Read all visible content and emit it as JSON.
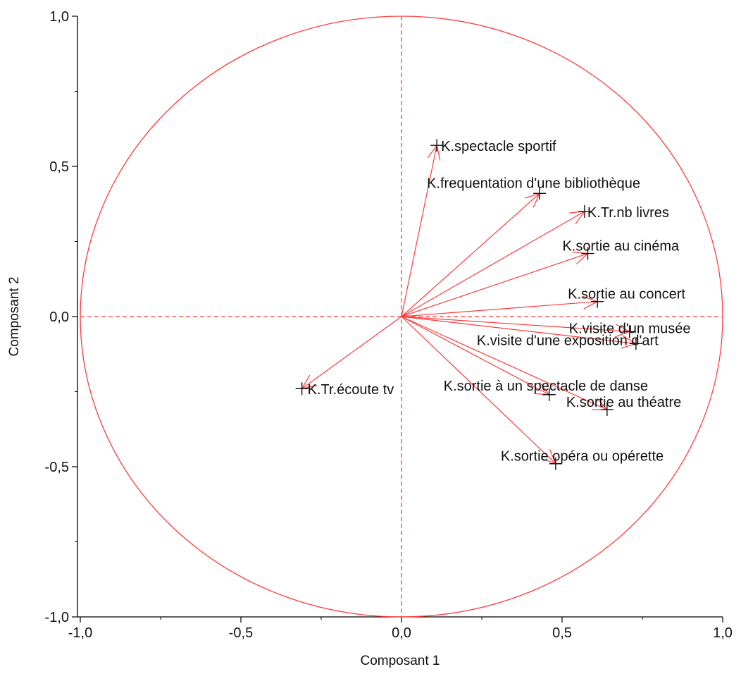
{
  "chart_data": {
    "type": "scatter",
    "subtype": "correlation-circle",
    "title": "",
    "xlabel": "Composant 1",
    "ylabel": "Composant 2",
    "xlim": [
      -1.0,
      1.0
    ],
    "ylim": [
      -1.0,
      1.0
    ],
    "x_ticks": [
      {
        "value": -1.0,
        "label": "-1,0"
      },
      {
        "value": -0.5,
        "label": "-0,5"
      },
      {
        "value": 0.0,
        "label": "0,0"
      },
      {
        "value": 0.5,
        "label": "0,5"
      },
      {
        "value": 1.0,
        "label": "1,0"
      }
    ],
    "y_ticks": [
      {
        "value": 1.0,
        "label": "1,0"
      },
      {
        "value": 0.5,
        "label": "0,5"
      },
      {
        "value": 0.0,
        "label": "0,0"
      },
      {
        "value": -0.5,
        "label": "-0,5"
      },
      {
        "value": -1.0,
        "label": "-1,0"
      }
    ],
    "grid": false,
    "unit_circle": true,
    "reference_lines": "dashed at x=0 and y=0",
    "colors": {
      "lines": "#ff3b3b",
      "markers": "#111111",
      "text": "#111111"
    },
    "points": [
      {
        "label": "K.spectacle sportif",
        "x": 0.11,
        "y": 0.57
      },
      {
        "label": "K.frequentation d'une bibliothèque",
        "x": 0.43,
        "y": 0.41
      },
      {
        "label": "K.Tr.nb livres",
        "x": 0.57,
        "y": 0.35
      },
      {
        "label": "K.sortie au cinéma",
        "x": 0.58,
        "y": 0.21
      },
      {
        "label": "K.sortie au concert",
        "x": 0.61,
        "y": 0.05
      },
      {
        "label": "K.visite d'un musée",
        "x": 0.71,
        "y": -0.05
      },
      {
        "label": "K.visite d'une exposition d'art",
        "x": 0.73,
        "y": -0.09
      },
      {
        "label": "K.sortie à  un spectacle de danse",
        "x": 0.46,
        "y": -0.26
      },
      {
        "label": "K.sortie au théatre",
        "x": 0.64,
        "y": -0.31
      },
      {
        "label": "K.sortie opéra ou opérette",
        "x": 0.48,
        "y": -0.49
      },
      {
        "label": "K.Tr.écoute tv",
        "x": -0.31,
        "y": -0.24
      }
    ]
  }
}
